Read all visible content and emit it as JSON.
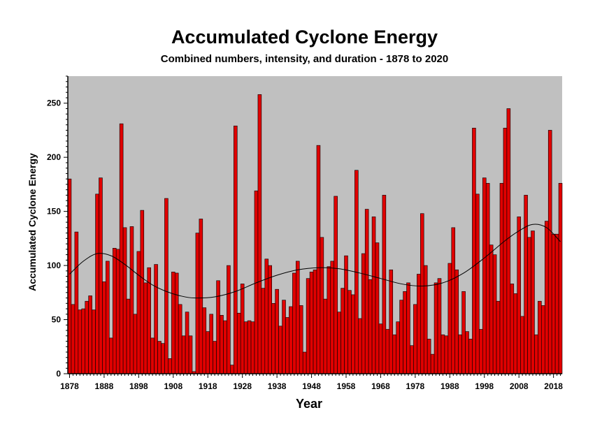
{
  "chart_data": {
    "type": "bar",
    "title": "Accumulated Cyclone Energy",
    "subtitle": "Combined numbers, intensity, and duration - 1878 to 2020",
    "xlabel": "Year",
    "ylabel": "Accumulated Cyclone Energy",
    "x_start": 1878,
    "x_end": 2020,
    "ylim": [
      0,
      275
    ],
    "yticks": [
      0,
      50,
      100,
      150,
      200,
      250
    ],
    "xtick_labels": [
      "1878",
      "1888",
      "1898",
      "1908",
      "1918",
      "1928",
      "1938",
      "1948",
      "1958",
      "1968",
      "1978",
      "1988",
      "1998",
      "2008",
      "2018"
    ],
    "grid": false,
    "background_color": "#c0c0c0",
    "bar_color": "#e00000",
    "trend_line_color": "#000000",
    "values": [
      180,
      64,
      131,
      59,
      60,
      67,
      72,
      59,
      166,
      181,
      85,
      104,
      33,
      116,
      115,
      231,
      135,
      69,
      136,
      55,
      113,
      151,
      84,
      98,
      33,
      101,
      30,
      28,
      162,
      14,
      94,
      93,
      64,
      35,
      57,
      35,
      2,
      130,
      143,
      61,
      39,
      55,
      30,
      86,
      54,
      49,
      100,
      8,
      229,
      56,
      83,
      48,
      49,
      48,
      169,
      258,
      79,
      106,
      100,
      65,
      78,
      44,
      68,
      52,
      62,
      93,
      104,
      63,
      20,
      88,
      94,
      96,
      211,
      126,
      69,
      99,
      104,
      164,
      57,
      79,
      109,
      77,
      73,
      188,
      51,
      111,
      152,
      87,
      145,
      121,
      46,
      165,
      41,
      96,
      36,
      48,
      68,
      76,
      84,
      26,
      64,
      92,
      148,
      100,
      32,
      18,
      84,
      88,
      36,
      35,
      102,
      135,
      96,
      36,
      76,
      39,
      32,
      227,
      166,
      41,
      181,
      176,
      119,
      110,
      67,
      176,
      227,
      245,
      83,
      74,
      145,
      53,
      165,
      126,
      132,
      36,
      67,
      63,
      141,
      225,
      129,
      129,
      176
    ],
    "trend": [
      {
        "year": 1878,
        "value": 92
      },
      {
        "year": 1882,
        "value": 104
      },
      {
        "year": 1886,
        "value": 111
      },
      {
        "year": 1890,
        "value": 109
      },
      {
        "year": 1894,
        "value": 101
      },
      {
        "year": 1898,
        "value": 91
      },
      {
        "year": 1902,
        "value": 82
      },
      {
        "year": 1906,
        "value": 76
      },
      {
        "year": 1910,
        "value": 72
      },
      {
        "year": 1914,
        "value": 70
      },
      {
        "year": 1920,
        "value": 71
      },
      {
        "year": 1926,
        "value": 76
      },
      {
        "year": 1932,
        "value": 84
      },
      {
        "year": 1938,
        "value": 91
      },
      {
        "year": 1944,
        "value": 96
      },
      {
        "year": 1950,
        "value": 98
      },
      {
        "year": 1956,
        "value": 97
      },
      {
        "year": 1962,
        "value": 93
      },
      {
        "year": 1968,
        "value": 88
      },
      {
        "year": 1974,
        "value": 83
      },
      {
        "year": 1980,
        "value": 81
      },
      {
        "year": 1986,
        "value": 84
      },
      {
        "year": 1992,
        "value": 93
      },
      {
        "year": 1998,
        "value": 107
      },
      {
        "year": 2004,
        "value": 123
      },
      {
        "year": 2008,
        "value": 132
      },
      {
        "year": 2012,
        "value": 138
      },
      {
        "year": 2016,
        "value": 135
      },
      {
        "year": 2020,
        "value": 122
      }
    ]
  }
}
